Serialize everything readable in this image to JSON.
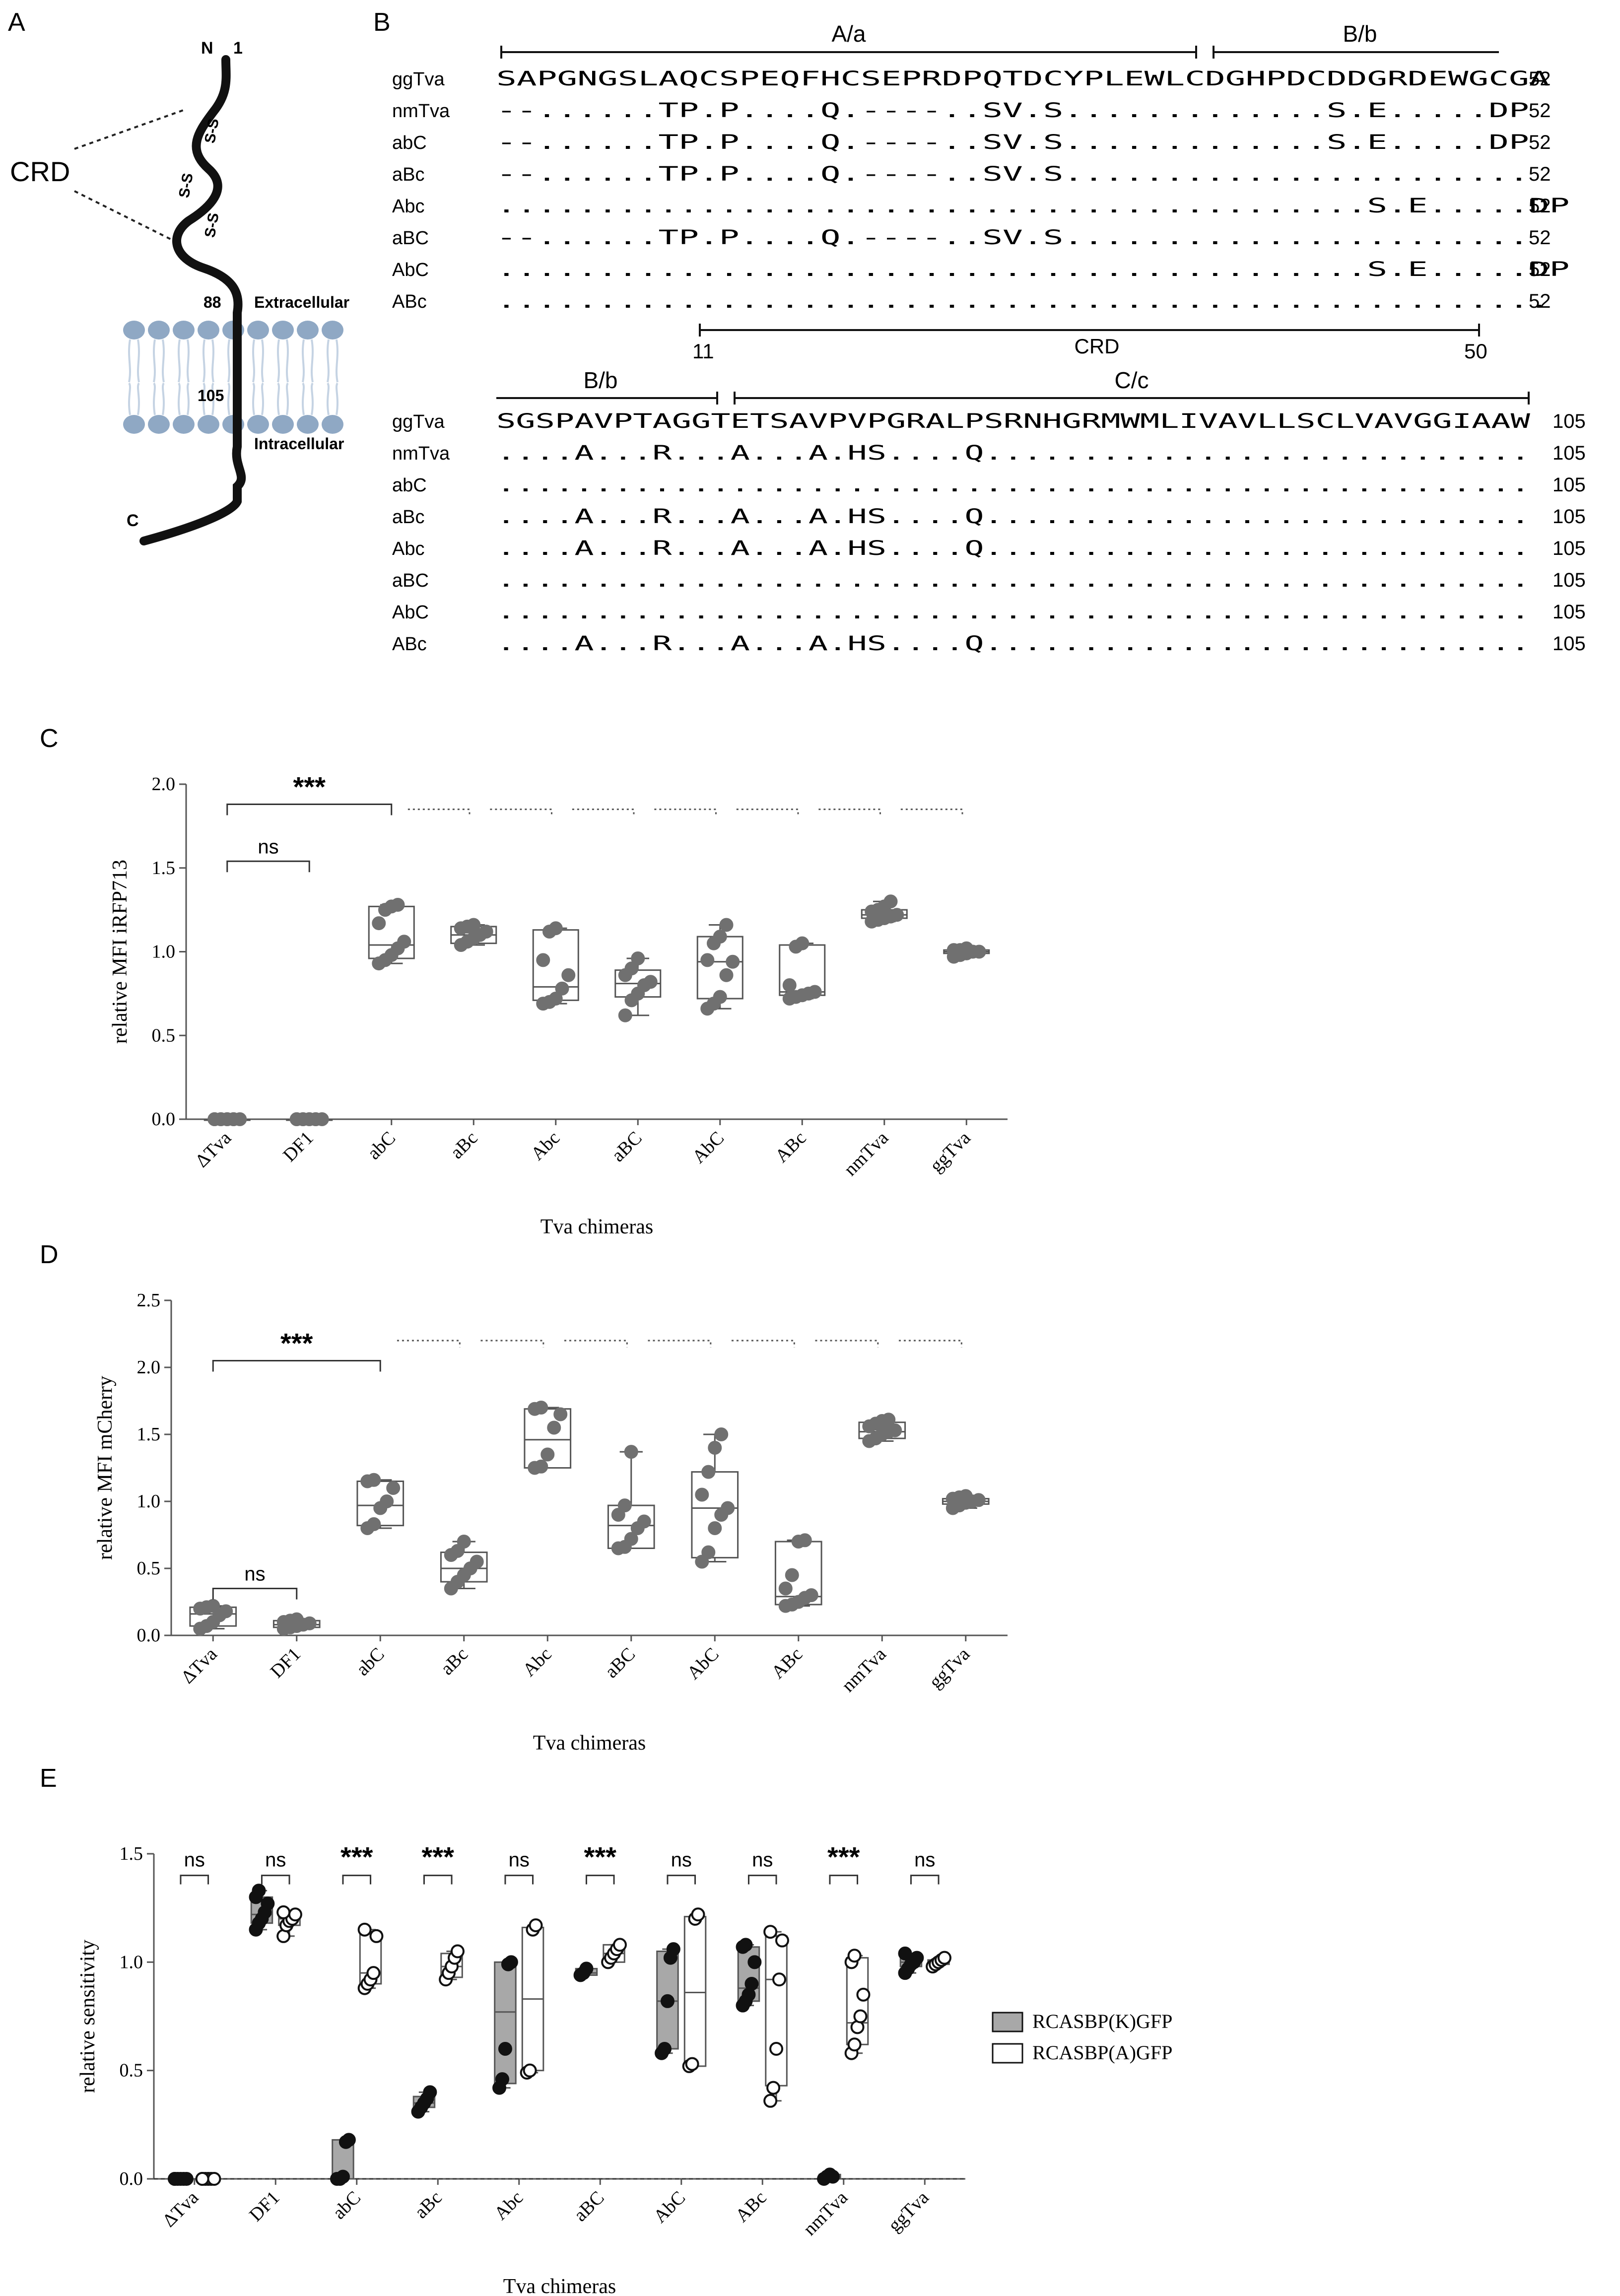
{
  "panels": {
    "a": "A",
    "b": "B",
    "c": "C",
    "d": "D",
    "e": "E"
  },
  "panel_a": {
    "n_term": "N",
    "start_num": "1",
    "crd": "CRD",
    "ss": "S-S",
    "pos88": "88",
    "extracellular": "Extracellular",
    "pos105": "105",
    "intracellular": "Intracellular",
    "c_term": "C"
  },
  "panel_b": {
    "top_regions": [
      "A/a",
      "B/b"
    ],
    "crd_label": "CRD",
    "crd_start": "11",
    "crd_end": "50",
    "bottom_regions": [
      "B/b",
      "C/c"
    ],
    "block1": {
      "end": "52",
      "rows": [
        {
          "name": "ggTva",
          "seq": "SAPGNGSLAQCSPEQFHCSEPRDPQTDCYPLEWLCDGHPDCDDGRDEWGCGA"
        },
        {
          "name": "nmTva",
          "seq": "--......TP.P....Q.----..SV.S.............S.E.....DP"
        },
        {
          "name": "abC",
          "seq": "--......TP.P....Q.----..SV.S.............S.E.....DP"
        },
        {
          "name": "aBc",
          "seq": "--......TP.P....Q.----..SV.S......................."
        },
        {
          "name": "Abc",
          "seq": "...........................................S.E.....DP"
        },
        {
          "name": "aBC",
          "seq": "--......TP.P....Q.----..SV.S......................."
        },
        {
          "name": "AbC",
          "seq": "...........................................S.E.....DP"
        },
        {
          "name": "ABc",
          "seq": "...................................................."
        }
      ]
    },
    "block2": {
      "end": "105",
      "rows": [
        {
          "name": "ggTva",
          "seq": "SGSPAVPTAGGTETSAVPVPGRALPSRNHGRMWMLIVAVLLSCLVAVGGIAAW"
        },
        {
          "name": "nmTva",
          "seq": "....A...R...A...A.HS....Q............................"
        },
        {
          "name": "abC",
          "seq": "....................................................."
        },
        {
          "name": "aBc",
          "seq": "....A...R...A...A.HS....Q............................"
        },
        {
          "name": "Abc",
          "seq": "....A...R...A...A.HS....Q............................"
        },
        {
          "name": "aBC",
          "seq": "....................................................."
        },
        {
          "name": "AbC",
          "seq": "....................................................."
        },
        {
          "name": "ABc",
          "seq": "....A...R...A...A.HS....Q............................"
        }
      ]
    }
  },
  "chart_data": [
    {
      "panel": "C",
      "type": "box",
      "ylabel": "relative MFI iRFP713",
      "xlabel": "Tva chimeras",
      "ylim": [
        0,
        2.0
      ],
      "yticks": [
        "0.0",
        "0.5",
        "1.0",
        "1.5",
        "2.0"
      ],
      "categories": [
        "ΔTva",
        "DF1",
        "abC",
        "aBc",
        "Abc",
        "aBC",
        "AbC",
        "ABc",
        "nmTva",
        "ggTva"
      ],
      "boxes": [
        {
          "min": 0,
          "q1": 0,
          "median": 0,
          "q3": 0,
          "max": 0,
          "points": [
            0,
            0,
            0,
            0,
            0,
            0,
            0,
            0,
            0
          ]
        },
        {
          "min": 0,
          "q1": 0,
          "median": 0,
          "q3": 0,
          "max": 0,
          "points": [
            0,
            0,
            0,
            0,
            0,
            0,
            0,
            0,
            0
          ]
        },
        {
          "min": 0.93,
          "q1": 0.96,
          "median": 1.04,
          "q3": 1.27,
          "max": 1.28,
          "points": [
            0.93,
            0.95,
            0.98,
            1.02,
            1.06,
            1.17,
            1.25,
            1.27,
            1.28
          ]
        },
        {
          "min": 1.04,
          "q1": 1.05,
          "median": 1.1,
          "q3": 1.15,
          "max": 1.16,
          "points": [
            1.04,
            1.06,
            1.08,
            1.1,
            1.12,
            1.14,
            1.15,
            1.16
          ]
        },
        {
          "min": 0.69,
          "q1": 0.71,
          "median": 0.79,
          "q3": 1.13,
          "max": 1.14,
          "points": [
            0.69,
            0.7,
            0.72,
            0.78,
            0.86,
            0.95,
            1.12,
            1.14
          ]
        },
        {
          "min": 0.62,
          "q1": 0.73,
          "median": 0.81,
          "q3": 0.89,
          "max": 0.96,
          "points": [
            0.62,
            0.71,
            0.75,
            0.8,
            0.82,
            0.86,
            0.9,
            0.96
          ]
        },
        {
          "min": 0.66,
          "q1": 0.72,
          "median": 0.94,
          "q3": 1.09,
          "max": 1.16,
          "points": [
            0.66,
            0.69,
            0.73,
            0.86,
            0.94,
            0.95,
            1.05,
            1.09,
            1.16
          ]
        },
        {
          "min": 0.72,
          "q1": 0.74,
          "median": 0.76,
          "q3": 1.04,
          "max": 1.05,
          "points": [
            0.72,
            0.73,
            0.74,
            0.75,
            0.76,
            0.8,
            1.03,
            1.05
          ]
        },
        {
          "min": 1.18,
          "q1": 1.2,
          "median": 1.22,
          "q3": 1.25,
          "max": 1.3,
          "points": [
            1.18,
            1.19,
            1.2,
            1.21,
            1.22,
            1.24,
            1.25,
            1.27,
            1.3
          ]
        },
        {
          "min": 0.97,
          "q1": 0.99,
          "median": 1.0,
          "q3": 1.01,
          "max": 1.02,
          "points": [
            0.97,
            0.98,
            0.99,
            1.0,
            1.0,
            1.01,
            1.01,
            1.02
          ]
        }
      ],
      "annotations": [
        {
          "text": "***",
          "from": 0,
          "to": 2,
          "y": 1.88
        },
        {
          "text": "ns",
          "from": 0,
          "to": 1,
          "y": 1.54
        }
      ],
      "dotted_brackets": [
        3,
        4,
        5,
        6,
        7,
        8,
        9
      ],
      "dotted_bracket_y": 1.85
    },
    {
      "panel": "D",
      "type": "box",
      "ylabel": "relative MFI mCherry",
      "xlabel": "Tva chimeras",
      "ylim": [
        0,
        2.5
      ],
      "yticks": [
        "0.0",
        "0.5",
        "1.0",
        "1.5",
        "2.0",
        "2.5"
      ],
      "categories": [
        "ΔTva",
        "DF1",
        "abC",
        "aBc",
        "Abc",
        "aBC",
        "AbC",
        "ABc",
        "nmTva",
        "ggTva"
      ],
      "boxes": [
        {
          "min": 0.05,
          "q1": 0.07,
          "median": 0.16,
          "q3": 0.21,
          "max": 0.22,
          "points": [
            0.05,
            0.07,
            0.1,
            0.15,
            0.18,
            0.2,
            0.21,
            0.22
          ]
        },
        {
          "min": 0.05,
          "q1": 0.06,
          "median": 0.08,
          "q3": 0.11,
          "max": 0.12,
          "points": [
            0.05,
            0.06,
            0.07,
            0.08,
            0.09,
            0.1,
            0.11,
            0.12
          ]
        },
        {
          "min": 0.8,
          "q1": 0.82,
          "median": 0.97,
          "q3": 1.15,
          "max": 1.16,
          "points": [
            0.8,
            0.83,
            0.95,
            1.0,
            1.1,
            1.15,
            1.16
          ]
        },
        {
          "min": 0.35,
          "q1": 0.4,
          "median": 0.5,
          "q3": 0.62,
          "max": 0.7,
          "points": [
            0.35,
            0.4,
            0.45,
            0.5,
            0.55,
            0.6,
            0.63,
            0.7
          ]
        },
        {
          "min": 1.25,
          "q1": 1.25,
          "median": 1.46,
          "q3": 1.69,
          "max": 1.7,
          "points": [
            1.25,
            1.26,
            1.35,
            1.55,
            1.65,
            1.69,
            1.7
          ]
        },
        {
          "min": 0.65,
          "q1": 0.65,
          "median": 0.82,
          "q3": 0.97,
          "max": 1.37,
          "points": [
            0.65,
            0.66,
            0.72,
            0.8,
            0.85,
            0.9,
            0.97,
            1.37
          ]
        },
        {
          "min": 0.55,
          "q1": 0.58,
          "median": 0.95,
          "q3": 1.22,
          "max": 1.5,
          "points": [
            0.55,
            0.62,
            0.8,
            0.9,
            0.95,
            1.05,
            1.22,
            1.4,
            1.5
          ]
        },
        {
          "min": 0.22,
          "q1": 0.23,
          "median": 0.29,
          "q3": 0.7,
          "max": 0.71,
          "points": [
            0.22,
            0.23,
            0.25,
            0.28,
            0.3,
            0.35,
            0.45,
            0.7,
            0.71
          ]
        },
        {
          "min": 1.45,
          "q1": 1.47,
          "median": 1.52,
          "q3": 1.59,
          "max": 1.61,
          "points": [
            1.45,
            1.47,
            1.5,
            1.52,
            1.53,
            1.56,
            1.58,
            1.6,
            1.61
          ]
        },
        {
          "min": 0.95,
          "q1": 0.98,
          "median": 1.0,
          "q3": 1.02,
          "max": 1.04,
          "points": [
            0.95,
            0.97,
            0.99,
            1.0,
            1.01,
            1.02,
            1.03,
            1.04
          ]
        }
      ],
      "annotations": [
        {
          "text": "***",
          "from": 0,
          "to": 2,
          "y": 2.05
        },
        {
          "text": "ns",
          "from": 0,
          "to": 1,
          "y": 0.35
        }
      ],
      "dotted_brackets": [
        3,
        4,
        5,
        6,
        7,
        8,
        9
      ],
      "dotted_bracket_y": 2.2
    },
    {
      "panel": "E",
      "type": "paired-box",
      "ylabel": "relative sensitivity",
      "xlabel": "Tva chimeras",
      "ylim": [
        0,
        1.5
      ],
      "yticks": [
        "0.0",
        "0.5",
        "1.0",
        "1.5"
      ],
      "categories": [
        "ΔTva",
        "DF1",
        "abC",
        "aBc",
        "Abc",
        "aBC",
        "AbC",
        "ABc",
        "nmTva",
        "ggTva"
      ],
      "significance": [
        "ns",
        "ns",
        "***",
        "***",
        "ns",
        "***",
        "ns",
        "ns",
        "***",
        "ns"
      ],
      "bracket_y": 1.4,
      "series": [
        {
          "name": "RCASBP(K)GFP",
          "fill": "#a8a8a8",
          "boxes": [
            {
              "min": 0,
              "q1": 0,
              "median": 0,
              "q3": 0,
              "max": 0,
              "points": [
                0,
                0,
                0,
                0,
                0,
                0
              ]
            },
            {
              "min": 1.15,
              "q1": 1.18,
              "median": 1.22,
              "q3": 1.3,
              "max": 1.33,
              "points": [
                1.15,
                1.18,
                1.2,
                1.23,
                1.27,
                1.3,
                1.33
              ]
            },
            {
              "min": 0,
              "q1": 0,
              "median": 0,
              "q3": 0.18,
              "max": 0.18,
              "points": [
                0,
                0,
                0.01,
                0.17,
                0.18
              ]
            },
            {
              "min": 0.31,
              "q1": 0.33,
              "median": 0.35,
              "q3": 0.38,
              "max": 0.4,
              "points": [
                0.31,
                0.33,
                0.35,
                0.37,
                0.4
              ]
            },
            {
              "min": 0.42,
              "q1": 0.44,
              "median": 0.77,
              "q3": 1.0,
              "max": 1.0,
              "points": [
                0.42,
                0.46,
                0.6,
                0.99,
                1.0
              ]
            },
            {
              "min": 0.94,
              "q1": 0.94,
              "median": 0.95,
              "q3": 0.97,
              "max": 0.97,
              "points": [
                0.94,
                0.95,
                0.97
              ]
            },
            {
              "min": 0.58,
              "q1": 0.6,
              "median": 0.82,
              "q3": 1.05,
              "max": 1.06,
              "points": [
                0.58,
                0.6,
                0.82,
                1.02,
                1.06
              ]
            },
            {
              "min": 0.8,
              "q1": 0.82,
              "median": 0.88,
              "q3": 1.07,
              "max": 1.08,
              "points": [
                0.8,
                0.82,
                0.85,
                0.9,
                1.0,
                1.07,
                1.08
              ]
            },
            {
              "min": 0,
              "q1": 0,
              "median": 0.01,
              "q3": 0.02,
              "max": 0.02,
              "points": [
                0,
                0.01,
                0.02,
                0.01
              ]
            },
            {
              "min": 0.95,
              "q1": 0.98,
              "median": 1.0,
              "q3": 1.02,
              "max": 1.04,
              "points": [
                0.95,
                0.97,
                0.99,
                1.0,
                1.02,
                1.04
              ]
            }
          ]
        },
        {
          "name": "RCASBP(A)GFP",
          "fill": "#ffffff",
          "boxes": [
            {
              "min": 0,
              "q1": 0,
              "median": 0,
              "q3": 0,
              "max": 0,
              "points": [
                0,
                0,
                0,
                0,
                0,
                0
              ]
            },
            {
              "min": 1.12,
              "q1": 1.17,
              "median": 1.2,
              "q3": 1.22,
              "max": 1.23,
              "points": [
                1.12,
                1.17,
                1.19,
                1.2,
                1.22,
                1.23
              ]
            },
            {
              "min": 0.88,
              "q1": 0.9,
              "median": 0.95,
              "q3": 1.14,
              "max": 1.15,
              "points": [
                0.88,
                0.9,
                0.92,
                0.95,
                1.12,
                1.15
              ]
            },
            {
              "min": 0.92,
              "q1": 0.93,
              "median": 0.98,
              "q3": 1.04,
              "max": 1.05,
              "points": [
                0.92,
                0.95,
                0.98,
                1.02,
                1.05
              ]
            },
            {
              "min": 0.49,
              "q1": 0.5,
              "median": 0.83,
              "q3": 1.16,
              "max": 1.17,
              "points": [
                0.49,
                0.5,
                1.15,
                1.17
              ]
            },
            {
              "min": 1.0,
              "q1": 1.0,
              "median": 1.04,
              "q3": 1.08,
              "max": 1.08,
              "points": [
                1.0,
                1.02,
                1.04,
                1.06,
                1.08
              ]
            },
            {
              "min": 0.52,
              "q1": 0.52,
              "median": 0.86,
              "q3": 1.21,
              "max": 1.22,
              "points": [
                0.52,
                0.53,
                1.2,
                1.22
              ]
            },
            {
              "min": 0.36,
              "q1": 0.43,
              "median": 0.92,
              "q3": 1.12,
              "max": 1.14,
              "points": [
                0.36,
                0.42,
                0.6,
                0.92,
                1.1,
                1.14
              ]
            },
            {
              "min": 0.58,
              "q1": 0.62,
              "median": 0.72,
              "q3": 1.02,
              "max": 1.03,
              "points": [
                0.58,
                0.62,
                0.7,
                0.75,
                0.85,
                1.0,
                1.03
              ]
            },
            {
              "min": 0.98,
              "q1": 0.99,
              "median": 1.0,
              "q3": 1.01,
              "max": 1.02,
              "points": [
                0.98,
                0.99,
                1.0,
                1.01,
                1.02
              ]
            }
          ]
        }
      ]
    }
  ]
}
